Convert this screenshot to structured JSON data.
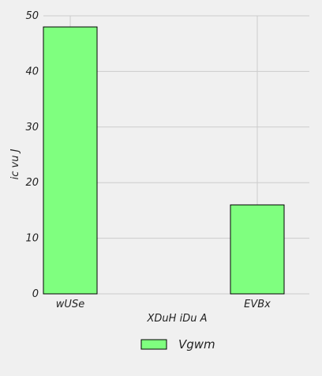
{
  "chart_data": {
    "type": "bar",
    "categories": [
      "wUSe",
      "EVBx"
    ],
    "series": [
      {
        "name": "Vgwm",
        "values": [
          48,
          16
        ]
      }
    ],
    "xlabel": "XDuH iDu A",
    "ylabel": "ic vu J",
    "ylim": [
      0,
      50
    ],
    "yticks": [
      0,
      10,
      20,
      30,
      40,
      50
    ],
    "grid": true,
    "legend_position": "bottom-center",
    "colors": {
      "bar_fill": "#7fff7f",
      "bar_edge": "#000000",
      "grid": "#cccccc",
      "background": "#f0f0f0"
    }
  }
}
